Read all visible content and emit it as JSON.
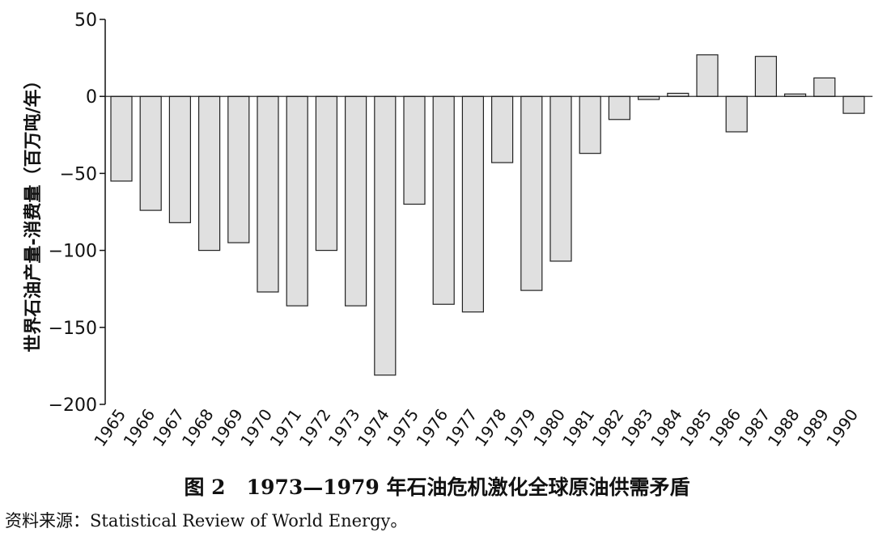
{
  "chart_data": {
    "type": "bar",
    "title": "",
    "xlabel": "",
    "ylabel": "世界石油产量-消费量（百万吨/年）",
    "ylim": [
      -200,
      50
    ],
    "yticks": [
      50,
      0,
      -50,
      -100,
      -150,
      -200
    ],
    "grid": false,
    "legend": "none",
    "bar_color": "#e0e0e0",
    "bar_stroke": "#222222",
    "categories": [
      "1965",
      "1966",
      "1967",
      "1968",
      "1969",
      "1970",
      "1971",
      "1972",
      "1973",
      "1974",
      "1975",
      "1976",
      "1977",
      "1978",
      "1979",
      "1980",
      "1981",
      "1982",
      "1983",
      "1984",
      "1985",
      "1986",
      "1987",
      "1988",
      "1989",
      "1990"
    ],
    "values": [
      -55,
      -74,
      -82,
      -100,
      -95,
      -127,
      -136,
      -100,
      -136,
      -181,
      -70,
      -135,
      -140,
      -43,
      -126,
      -107,
      -37,
      -15,
      -2,
      2,
      27,
      -23,
      26,
      1,
      12,
      -11
    ]
  },
  "caption": {
    "label": "图 2",
    "text": "1973—1979 年石油危机激化全球原油供需矛盾"
  },
  "source": {
    "text": "资料来源：Statistical Review of World Energy。"
  }
}
